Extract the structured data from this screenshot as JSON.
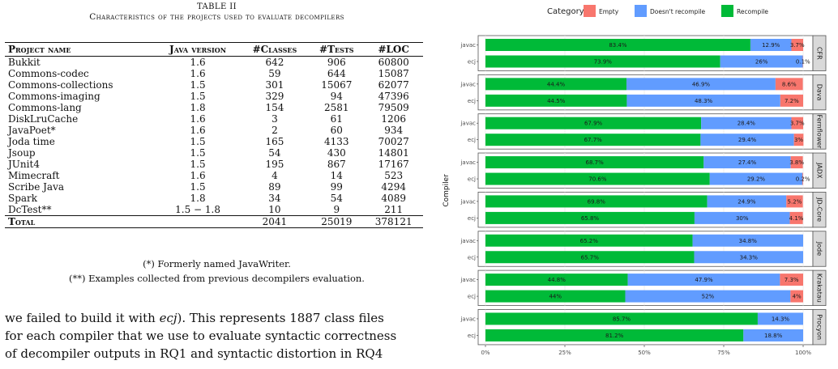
{
  "table": {
    "title": "TABLE II",
    "caption": "Characteristics of the projects used to evaluate decompilers",
    "headers": [
      "Project name",
      "Java version",
      "#Classes",
      "#Tests",
      "#LOC"
    ],
    "rows": [
      [
        "Bukkit",
        "1.6",
        "642",
        "906",
        "60800"
      ],
      [
        "Commons-codec",
        "1.6",
        "59",
        "644",
        "15087"
      ],
      [
        "Commons-collections",
        "1.5",
        "301",
        "15067",
        "62077"
      ],
      [
        "Commons-imaging",
        "1.5",
        "329",
        "94",
        "47396"
      ],
      [
        "Commons-lang",
        "1.8",
        "154",
        "2581",
        "79509"
      ],
      [
        "DiskLruCache",
        "1.6",
        "3",
        "61",
        "1206"
      ],
      [
        "JavaPoet*",
        "1.6",
        "2",
        "60",
        "934"
      ],
      [
        "Joda time",
        "1.5",
        "165",
        "4133",
        "70027"
      ],
      [
        "Jsoup",
        "1.5",
        "54",
        "430",
        "14801"
      ],
      [
        "JUnit4",
        "1.5",
        "195",
        "867",
        "17167"
      ],
      [
        "Mimecraft",
        "1.6",
        "4",
        "14",
        "523"
      ],
      [
        "Scribe Java",
        "1.5",
        "89",
        "99",
        "4294"
      ],
      [
        "Spark",
        "1.8",
        "34",
        "54",
        "4089"
      ],
      [
        "DcTest**",
        "1.5 − 1.8",
        "10",
        "9",
        "211"
      ]
    ],
    "total": [
      "Total",
      "",
      "2041",
      "25019",
      "378121"
    ],
    "footnote1": "(*) Formerly named JavaWriter.",
    "footnote2": "(**) Examples collected from previous decompilers evaluation."
  },
  "body_text": {
    "line1": "we failed to build it with ecj). This represents 1887 class files",
    "line2": "for each compiler that we use to evaluate syntactic correctness",
    "line3": "of decompiler outputs in RQ1 and syntactic distortion in RQ4"
  },
  "chart_data": {
    "type": "bar",
    "orientation": "horizontal",
    "stacked": true,
    "legend_title": "Category",
    "legend_position": "top",
    "ylabel": "Compiler",
    "xlim": [
      0,
      100
    ],
    "x_ticks": [
      "0%",
      "25%",
      "50%",
      "75%",
      "100%"
    ],
    "series": [
      {
        "name": "Empty",
        "color": "#f8766d"
      },
      {
        "name": "Doesn't recompile",
        "color": "#619cff"
      },
      {
        "name": "Recompile",
        "color": "#00ba38"
      }
    ],
    "facets": [
      {
        "name": "CFR",
        "bars": [
          {
            "compiler": "javac",
            "recompile": 83.4,
            "doesnt": 12.9,
            "empty": 3.7,
            "labels": [
              "83.4%",
              "12.9%",
              "3.7%"
            ]
          },
          {
            "compiler": "ecj",
            "recompile": 73.9,
            "doesnt": 26,
            "empty": 0.1,
            "labels": [
              "73.9%",
              "26%",
              "0.1%"
            ]
          }
        ]
      },
      {
        "name": "Dava",
        "bars": [
          {
            "compiler": "javac",
            "recompile": 44.4,
            "doesnt": 46.9,
            "empty": 8.6,
            "labels": [
              "44.4%",
              "46.9%",
              "8.6%"
            ]
          },
          {
            "compiler": "ecj",
            "recompile": 44.5,
            "doesnt": 48.3,
            "empty": 7.2,
            "labels": [
              "44.5%",
              "48.3%",
              "7.2%"
            ]
          }
        ]
      },
      {
        "name": "Fernflower",
        "bars": [
          {
            "compiler": "javac",
            "recompile": 67.9,
            "doesnt": 28.4,
            "empty": 3.7,
            "labels": [
              "67.9%",
              "28.4%",
              "3.7%"
            ]
          },
          {
            "compiler": "ecj",
            "recompile": 67.7,
            "doesnt": 29.4,
            "empty": 3,
            "labels": [
              "67.7%",
              "29.4%",
              "3%"
            ]
          }
        ]
      },
      {
        "name": "JADX",
        "bars": [
          {
            "compiler": "javac",
            "recompile": 68.7,
            "doesnt": 27.4,
            "empty": 3.8,
            "labels": [
              "68.7%",
              "27.4%",
              "3.8%"
            ]
          },
          {
            "compiler": "ecj",
            "recompile": 70.6,
            "doesnt": 29.2,
            "empty": 0.2,
            "labels": [
              "70.6%",
              "29.2%",
              "0.2%"
            ]
          }
        ]
      },
      {
        "name": "JD-Core",
        "bars": [
          {
            "compiler": "javac",
            "recompile": 69.8,
            "doesnt": 24.9,
            "empty": 5.2,
            "labels": [
              "69.8%",
              "24.9%",
              "5.2%"
            ]
          },
          {
            "compiler": "ecj",
            "recompile": 65.8,
            "doesnt": 30,
            "empty": 4.1,
            "labels": [
              "65.8%",
              "30%",
              "4.1%"
            ]
          }
        ]
      },
      {
        "name": "Jode",
        "bars": [
          {
            "compiler": "javac",
            "recompile": 65.2,
            "doesnt": 34.8,
            "empty": 0,
            "labels": [
              "65.2%",
              "34.8%",
              ""
            ]
          },
          {
            "compiler": "ecj",
            "recompile": 65.7,
            "doesnt": 34.3,
            "empty": 0,
            "labels": [
              "65.7%",
              "34.3%",
              ""
            ]
          }
        ]
      },
      {
        "name": "Krakatau",
        "bars": [
          {
            "compiler": "javac",
            "recompile": 44.8,
            "doesnt": 47.9,
            "empty": 7.3,
            "labels": [
              "44.8%",
              "47.9%",
              "7.3%"
            ]
          },
          {
            "compiler": "ecj",
            "recompile": 44,
            "doesnt": 52,
            "empty": 4,
            "labels": [
              "44%",
              "52%",
              "4%"
            ]
          }
        ]
      },
      {
        "name": "Procyon",
        "bars": [
          {
            "compiler": "javac",
            "recompile": 85.7,
            "doesnt": 14.3,
            "empty": 0,
            "labels": [
              "85.7%",
              "14.3%",
              ""
            ]
          },
          {
            "compiler": "ecj",
            "recompile": 81.2,
            "doesnt": 18.8,
            "empty": 0,
            "labels": [
              "81.2%",
              "18.8%",
              ""
            ]
          }
        ]
      }
    ]
  }
}
